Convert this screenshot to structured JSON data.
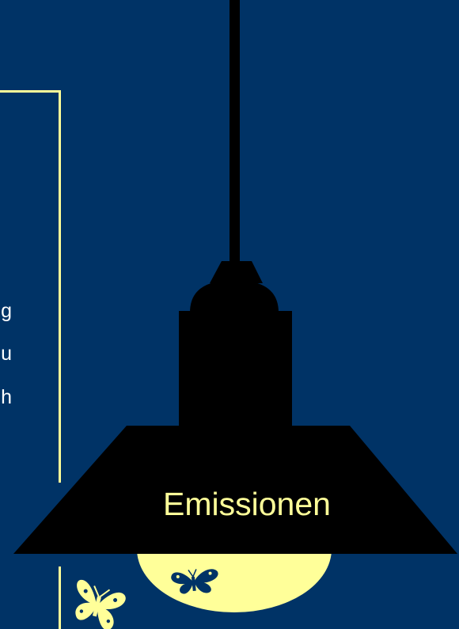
{
  "colors": {
    "background": "#003366",
    "accent_yellow": "#ffff99",
    "lamp_black": "#000000"
  },
  "text_fragments": [
    {
      "text": "g"
    },
    {
      "text": "u"
    },
    {
      "text": "h"
    }
  ],
  "lamp": {
    "label": "Emissionen"
  },
  "icons": [
    {
      "name": "butterfly-left-icon"
    },
    {
      "name": "butterfly-bulb-icon"
    }
  ]
}
